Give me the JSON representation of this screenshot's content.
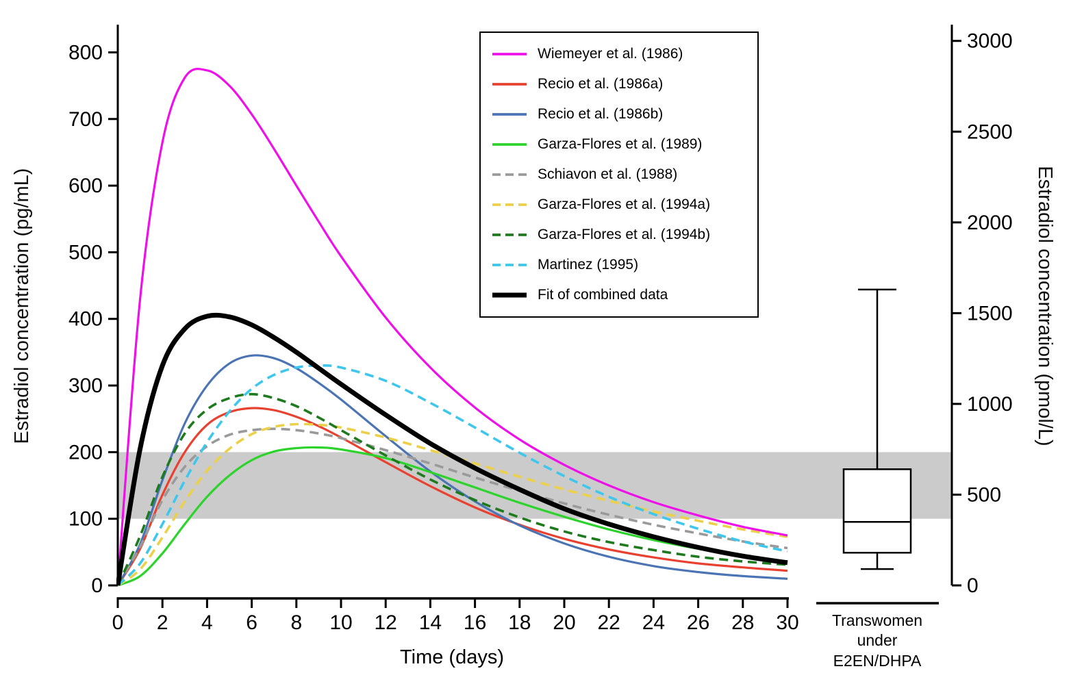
{
  "chart_data": {
    "type": "line",
    "x_axis": {
      "label": "Time (days)",
      "range": [
        0,
        30
      ],
      "ticks": [
        0,
        2,
        4,
        6,
        8,
        10,
        12,
        14,
        16,
        18,
        20,
        22,
        24,
        26,
        28,
        30
      ]
    },
    "y_axis_left": {
      "label": "Estradiol concentration (pg/mL)",
      "range": [
        0,
        843
      ],
      "ticks": [
        0,
        100,
        200,
        300,
        400,
        500,
        600,
        700,
        800
      ]
    },
    "y_axis_right": {
      "label": "Estradiol concentration (pmol/L)",
      "range": [
        0,
        3095
      ],
      "ticks": [
        0,
        500,
        1000,
        1500,
        2000,
        2500,
        3000
      ]
    },
    "pmol_per_pg": 3.671,
    "reference_band": {
      "y_min": 100,
      "y_max": 200,
      "color": "#cbcbcb"
    },
    "grid": false,
    "legend_position": "upper-right",
    "x_samples": [
      0,
      1,
      2,
      3,
      4,
      5,
      6,
      7,
      8,
      9,
      10,
      12,
      14,
      16,
      18,
      20,
      22,
      24,
      26,
      28,
      30
    ],
    "series": [
      {
        "name": "Wiemeyer et al. (1986)",
        "color": "#ee10e8",
        "style": "solid",
        "emphasis": false,
        "values": [
          0,
          430,
          665,
          762,
          773,
          750,
          707,
          655,
          600,
          546,
          494,
          402,
          327,
          267,
          219,
          181,
          150,
          125,
          105,
          88,
          75
        ]
      },
      {
        "name": "Recio et al. (1986a)",
        "color": "#e8412f",
        "style": "solid",
        "emphasis": false,
        "values": [
          0,
          55,
          136,
          200,
          241,
          260,
          266,
          263,
          253,
          239,
          222,
          185,
          149,
          117,
          91,
          70,
          54,
          42,
          33,
          27,
          22
        ]
      },
      {
        "name": "Recio et al. (1986b)",
        "color": "#4a74b4",
        "style": "solid",
        "emphasis": false,
        "values": [
          0,
          62,
          158,
          243,
          300,
          333,
          345,
          341,
          326,
          304,
          279,
          224,
          171,
          126,
          90,
          63,
          43,
          29,
          20,
          14,
          10
        ]
      },
      {
        "name": "Garza-Flores et al. (1989)",
        "color": "#2bd32b",
        "style": "solid",
        "emphasis": false,
        "values": [
          0,
          14,
          48,
          92,
          133,
          165,
          188,
          201,
          206,
          207,
          204,
          191,
          170,
          147,
          124,
          103,
          84,
          68,
          55,
          44,
          36
        ]
      },
      {
        "name": "Schiavon et al. (1988)",
        "color": "#9a9a9a",
        "style": "dashed",
        "emphasis": false,
        "values": [
          0,
          58,
          128,
          178,
          209,
          226,
          233,
          235,
          233,
          228,
          221,
          203,
          183,
          162,
          142,
          123,
          106,
          91,
          78,
          66,
          56
        ]
      },
      {
        "name": "Garza-Flores et al. (1994a)",
        "color": "#ecd04a",
        "style": "dashed",
        "emphasis": false,
        "values": [
          0,
          24,
          72,
          126,
          172,
          205,
          227,
          238,
          242,
          241,
          237,
          222,
          203,
          183,
          163,
          144,
          127,
          111,
          97,
          84,
          73
        ]
      },
      {
        "name": "Garza-Flores et al. (1994b)",
        "color": "#1d7a1d",
        "style": "dashed",
        "emphasis": false,
        "values": [
          0,
          74,
          163,
          228,
          264,
          281,
          287,
          281,
          269,
          252,
          233,
          195,
          159,
          128,
          102,
          81,
          65,
          53,
          43,
          36,
          31
        ]
      },
      {
        "name": "Martinez (1995)",
        "color": "#3ec7ec",
        "style": "dashed",
        "emphasis": false,
        "values": [
          0,
          33,
          92,
          157,
          215,
          261,
          295,
          316,
          327,
          330,
          327,
          307,
          274,
          237,
          199,
          164,
          133,
          107,
          85,
          66,
          51
        ]
      },
      {
        "name": "Fit of combined data",
        "color": "#000000",
        "style": "solid",
        "emphasis": true,
        "values": [
          0,
          205,
          330,
          385,
          404,
          403,
          391,
          372,
          350,
          326,
          302,
          256,
          213,
          176,
          144,
          115,
          92,
          73,
          57,
          44,
          34
        ]
      }
    ],
    "boxplot": {
      "caption_lines": [
        "Transwomen",
        "under",
        "E2EN/DHPA"
      ],
      "unit": "pmol/L",
      "whisker_low": 90,
      "q1": 180,
      "median": 350,
      "q3": 640,
      "whisker_high": 1630
    }
  }
}
